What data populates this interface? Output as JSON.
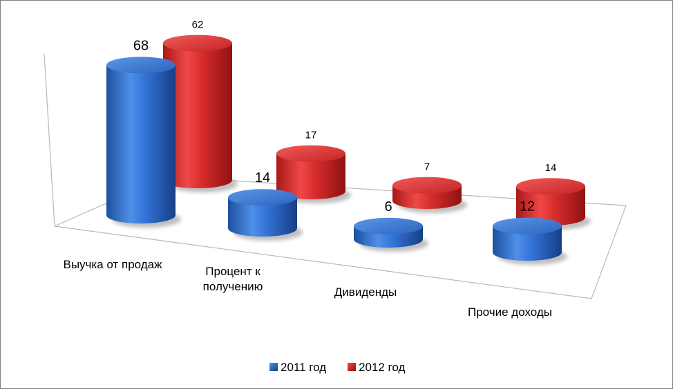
{
  "chart_data": {
    "type": "bar",
    "style": "3d-cylinder",
    "categories": [
      "Выучка от продаж",
      "Процент к получению",
      "Дивиденды",
      "Прочие доходы"
    ],
    "category_lines": [
      [
        "Выучка от продаж"
      ],
      [
        "Процент к",
        "получению"
      ],
      [
        "Дивиденды"
      ],
      [
        "Прочие доходы"
      ]
    ],
    "series": [
      {
        "name": "2011 год",
        "values": [
          68,
          14,
          6,
          12
        ],
        "color": "#2e6fd6"
      },
      {
        "name": "2012 год",
        "values": [
          62,
          17,
          7,
          14
        ],
        "color": "#d42a2a"
      }
    ],
    "legend": {
      "position": "bottom",
      "items": [
        "2011 год",
        "2012 год"
      ]
    },
    "grid": false
  }
}
